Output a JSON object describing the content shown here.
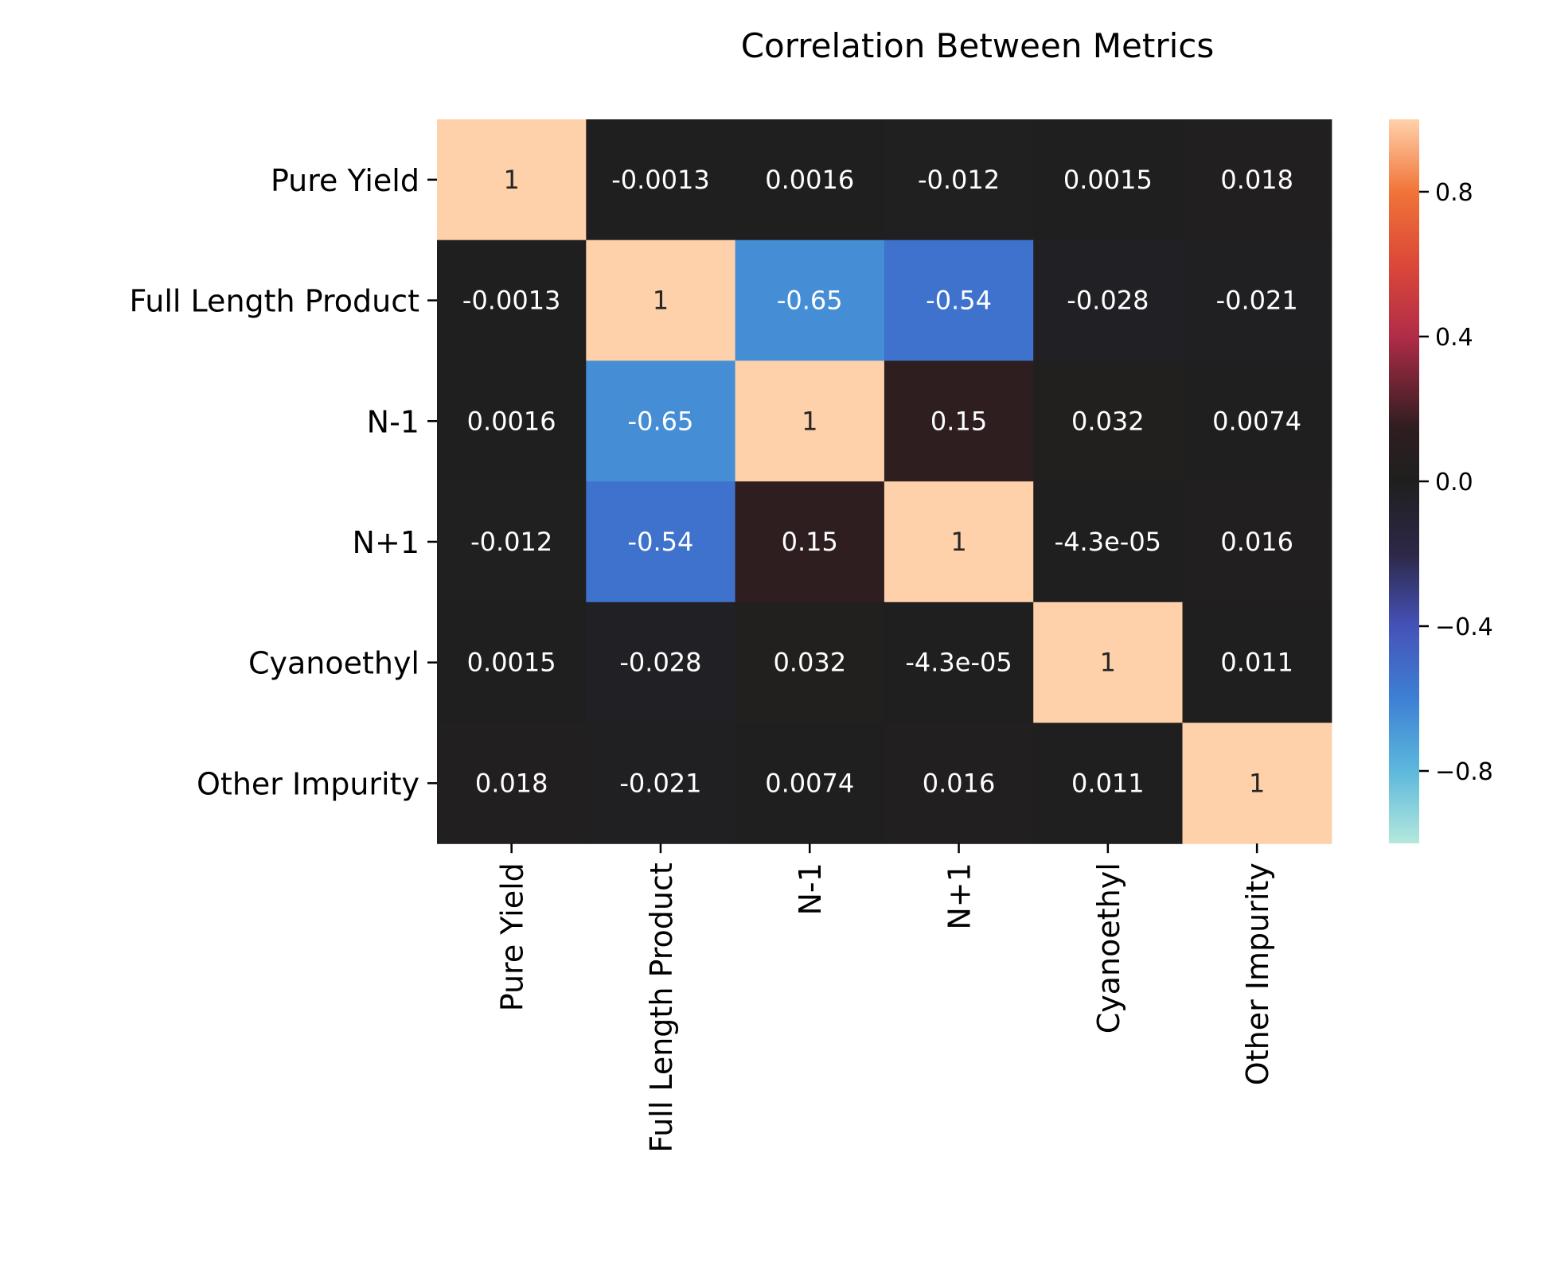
{
  "chart_data": {
    "type": "heatmap",
    "title": "Correlation Between Metrics",
    "xlabel": "",
    "ylabel": "",
    "labels": [
      "Pure Yield",
      "Full Length Product",
      "N-1",
      "N+1",
      "Cyanoethyl",
      "Other Impurity"
    ],
    "matrix": [
      [
        1,
        -0.0013,
        0.0016,
        -0.012,
        0.0015,
        0.018
      ],
      [
        -0.0013,
        1,
        -0.65,
        -0.54,
        -0.028,
        -0.021
      ],
      [
        0.0016,
        -0.65,
        1,
        0.15,
        0.032,
        0.0074
      ],
      [
        -0.012,
        -0.54,
        0.15,
        1,
        -4.3e-05,
        0.016
      ],
      [
        0.0015,
        -0.028,
        0.032,
        -4.3e-05,
        1,
        0.011
      ],
      [
        0.018,
        -0.021,
        0.0074,
        0.016,
        0.011,
        1
      ]
    ],
    "annotations": [
      [
        "1",
        "-0.0013",
        "0.0016",
        "-0.012",
        "0.0015",
        "0.018"
      ],
      [
        "-0.0013",
        "1",
        "-0.65",
        "-0.54",
        "-0.028",
        "-0.021"
      ],
      [
        "0.0016",
        "-0.65",
        "1",
        "0.15",
        "0.032",
        "0.0074"
      ],
      [
        "-0.012",
        "-0.54",
        "0.15",
        "1",
        "-4.3e-05",
        "0.016"
      ],
      [
        "0.0015",
        "-0.028",
        "0.032",
        "-4.3e-05",
        "1",
        "0.011"
      ],
      [
        "0.018",
        "-0.021",
        "0.0074",
        "0.016",
        "0.011",
        "1"
      ]
    ],
    "colorbar": {
      "range": [
        -1,
        1
      ],
      "ticks": [
        -0.8,
        -0.4,
        0.0,
        0.4,
        0.8
      ],
      "tick_labels": [
        "−0.8",
        "−0.4",
        "0.0",
        "0.4",
        "0.8"
      ]
    },
    "colormap_stops": [
      {
        "value": -1.0,
        "color": "#b4e8dc"
      },
      {
        "value": -0.8,
        "color": "#5cb8dc"
      },
      {
        "value": -0.6,
        "color": "#3d80d4"
      },
      {
        "value": -0.4,
        "color": "#4552b8"
      },
      {
        "value": -0.2,
        "color": "#2d2848"
      },
      {
        "value": 0.0,
        "color": "#1f1f1f"
      },
      {
        "value": 0.15,
        "color": "#2f1e20"
      },
      {
        "value": 0.2,
        "color": "#4a2028"
      },
      {
        "value": 0.4,
        "color": "#b02c48"
      },
      {
        "value": 0.6,
        "color": "#dc4838"
      },
      {
        "value": 0.8,
        "color": "#f07438"
      },
      {
        "value": 1.0,
        "color": "#ffd1aa"
      }
    ]
  }
}
